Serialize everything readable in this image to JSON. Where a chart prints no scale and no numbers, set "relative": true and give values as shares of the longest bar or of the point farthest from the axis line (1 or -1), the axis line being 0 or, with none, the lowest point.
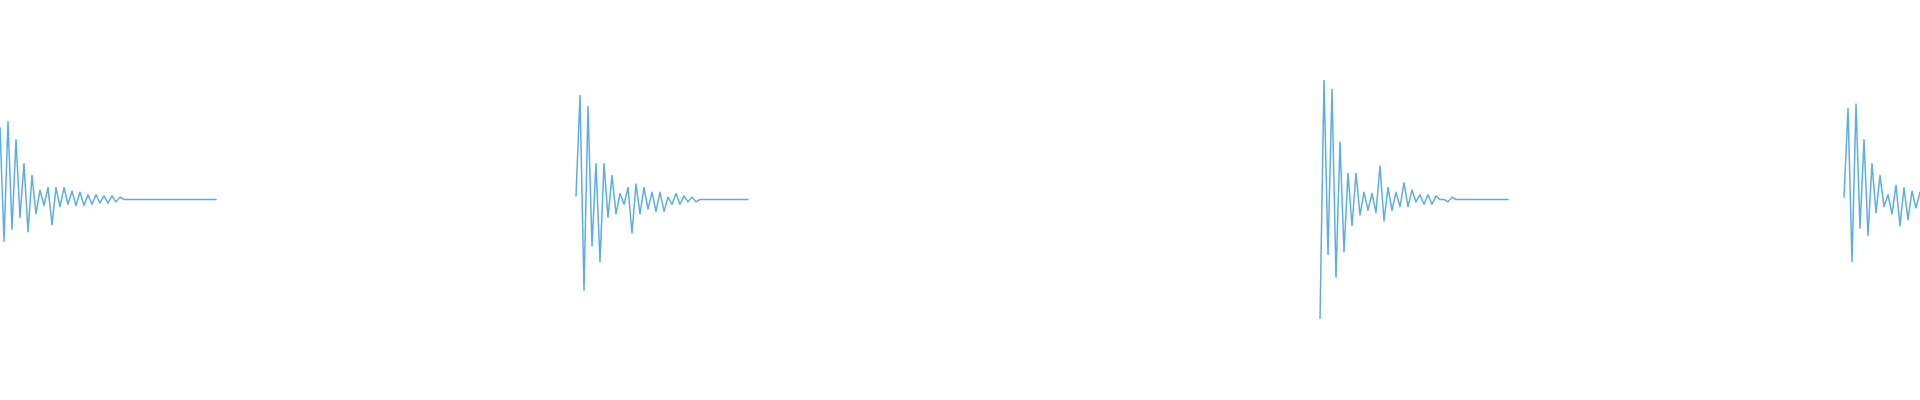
{
  "chart_data": {
    "type": "line",
    "relative": true,
    "categories": [
      null,
      null,
      null,
      null,
      null,
      null,
      null,
      null,
      null,
      null,
      null,
      null,
      null,
      null,
      null,
      null,
      null,
      null,
      null,
      null,
      null,
      null,
      null,
      null,
      null,
      null,
      null,
      null,
      null,
      null,
      null,
      null,
      null,
      null,
      null,
      null,
      null,
      null,
      null,
      null,
      null,
      null,
      null,
      null,
      null,
      null,
      null,
      null,
      null,
      null,
      null,
      null,
      null,
      null,
      null,
      null,
      null,
      null,
      null,
      null,
      null,
      null,
      null,
      null,
      null,
      null,
      null,
      null,
      null,
      null,
      null,
      null,
      null,
      null,
      null,
      null,
      null,
      null,
      null,
      null,
      null,
      null,
      null,
      null,
      null,
      null,
      null,
      null,
      null,
      null,
      null,
      null,
      null,
      null,
      null,
      null,
      null,
      null,
      null,
      null,
      null,
      null,
      null,
      null,
      null,
      null,
      null,
      null,
      null,
      null,
      null,
      null,
      null,
      null,
      null,
      null,
      null,
      null,
      null,
      null,
      null,
      null,
      null,
      null,
      null,
      null,
      null,
      null,
      null,
      null,
      null,
      null,
      null,
      null,
      null,
      null,
      null,
      null,
      null,
      null,
      null,
      null,
      null,
      null,
      null,
      null,
      null,
      null,
      null,
      null,
      null,
      null,
      null,
      null,
      null,
      null,
      null,
      null,
      null,
      null,
      null,
      null,
      null,
      null,
      null,
      null,
      null,
      null,
      null,
      null,
      null,
      null,
      null,
      null,
      null,
      null,
      null,
      null,
      null,
      null,
      null,
      null,
      null,
      null,
      null,
      null,
      null,
      null,
      null,
      null,
      null,
      null,
      null,
      null,
      null,
      null,
      null,
      null,
      null,
      null,
      null,
      null,
      null,
      null,
      null,
      null,
      null,
      null,
      null,
      null,
      null,
      null,
      null,
      null,
      null,
      null,
      null,
      null,
      null,
      null,
      null,
      null,
      null,
      null,
      null,
      null,
      null,
      null,
      null,
      null,
      null,
      null,
      null,
      null,
      null,
      null,
      null,
      null,
      null,
      null,
      null,
      null,
      null,
      null,
      null,
      null,
      null,
      null,
      null,
      null,
      null,
      null,
      null,
      null,
      null,
      null,
      null,
      null,
      null,
      null,
      null,
      null,
      null,
      null,
      null,
      null,
      null,
      null,
      null,
      null,
      null,
      null,
      null,
      null,
      null,
      null,
      null,
      null,
      null,
      null,
      null,
      null,
      null,
      null,
      null,
      null,
      null,
      null,
      null,
      null,
      null,
      null,
      null,
      null,
      null,
      null,
      null,
      null,
      null,
      null,
      null,
      null,
      null,
      null,
      null,
      null,
      null,
      null,
      null,
      null,
      null,
      null,
      null,
      null,
      null,
      null,
      null,
      null,
      null,
      null,
      null,
      null,
      null,
      null,
      null,
      null,
      null,
      null,
      null,
      null,
      null,
      null,
      null,
      null,
      null,
      null,
      null,
      null,
      null,
      null,
      null,
      null,
      null,
      null,
      null,
      null,
      null,
      null,
      null,
      null,
      null,
      null,
      null,
      null,
      null,
      null,
      null,
      null,
      null,
      null,
      null,
      null,
      null,
      null,
      null,
      null,
      null,
      null,
      null,
      null,
      null,
      null,
      null,
      null,
      null,
      null,
      null,
      null,
      null,
      null,
      null,
      null,
      null,
      null,
      null,
      null,
      null,
      null,
      null,
      null,
      null,
      null,
      null,
      null,
      null,
      null,
      null,
      null,
      null,
      null,
      null,
      null,
      null,
      null,
      null,
      null,
      null,
      null,
      null,
      null,
      null,
      null,
      null,
      null,
      null,
      null,
      null,
      null,
      null,
      null,
      null,
      null,
      null,
      null,
      null,
      null,
      null,
      null,
      null,
      null,
      null,
      null,
      null,
      null,
      null,
      null,
      null,
      null,
      null,
      null,
      null,
      null,
      null,
      null,
      null,
      null,
      null,
      null,
      null,
      null,
      null,
      null,
      null,
      null,
      null,
      null,
      null,
      null,
      null,
      null,
      null,
      null,
      null,
      null,
      null,
      null,
      null,
      null,
      null,
      null,
      null,
      null,
      null,
      null,
      null,
      null,
      null,
      null,
      null,
      null,
      null
    ],
    "series": [
      {
        "color": "#5dade2",
        "values": [
          0.8,
          0.325,
          0.825,
          0.375,
          0.75,
          0.425,
          0.65,
          0.365,
          0.6,
          0.44,
          0.54,
          0.475,
          0.55,
          0.395,
          0.55,
          0.47,
          0.55,
          0.48,
          0.535,
          0.475,
          0.53,
          0.475,
          0.52,
          0.48,
          0.52,
          0.485,
          0.515,
          0.485,
          0.515,
          0.49,
          0.51,
          0.5,
          0.5,
          0.5,
          0.5,
          0.5,
          0.5,
          0.5,
          0.5,
          0.5,
          0.5,
          0.5,
          0.5,
          0.5,
          0.5,
          0.5,
          0.5,
          0.5,
          0.5,
          0.5,
          0.5,
          0.5,
          0.5,
          0.5,
          0.5,
          null,
          null,
          null,
          null,
          null,
          null,
          null,
          null,
          null,
          null,
          null,
          null,
          null,
          null,
          null,
          null,
          null,
          null,
          null,
          null,
          null,
          null,
          null,
          null,
          null,
          null,
          null,
          null,
          null,
          null,
          null,
          null,
          null,
          null,
          null,
          null,
          null,
          null,
          null,
          null,
          null,
          null,
          null,
          null,
          null,
          null,
          null,
          null,
          null,
          null,
          null,
          null,
          null,
          null,
          null,
          null,
          null,
          null,
          null,
          null,
          null,
          null,
          null,
          null,
          null,
          null,
          null,
          null,
          null,
          null,
          null,
          null,
          null,
          null,
          null,
          null,
          null,
          null,
          null,
          null,
          null,
          null,
          null,
          null,
          null,
          null,
          null,
          null,
          null,
          null,
          null,
          null,
          null,
          null,
          null,
          null,
          null,
          null,
          null,
          null,
          null,
          null,
          null,
          null,
          null,
          null,
          null,
          null,
          null,
          null,
          null,
          null,
          null,
          null,
          null,
          null,
          null,
          null,
          null,
          null,
          null,
          null,
          null,
          null,
          null,
          null,
          null,
          null,
          null,
          null,
          null,
          null,
          null,
          null,
          null,
          null,
          null,
          null,
          null,
          null,
          null,
          null,
          null,
          null,
          null,
          null,
          null,
          null,
          null,
          null,
          null,
          null,
          null,
          null,
          null,
          null,
          null,
          null,
          null,
          null,
          null,
          null,
          null,
          null,
          null,
          null,
          null,
          null,
          null,
          null,
          null,
          null,
          null,
          null,
          null,
          null,
          null,
          null,
          null,
          null,
          null,
          null,
          null,
          null,
          null,
          null,
          null,
          null,
          null,
          null,
          null,
          null,
          null,
          null,
          null,
          null,
          null,
          null,
          null,
          null,
          null,
          null,
          null,
          null,
          null,
          null,
          null,
          null,
          null,
          null,
          null,
          null,
          null,
          null,
          null,
          null,
          null,
          null,
          null,
          null,
          null,
          null,
          null,
          null,
          null,
          null,
          null,
          null,
          null,
          null,
          null,
          null,
          null,
          null,
          null,
          null,
          null,
          null,
          null,
          null,
          null,
          null,
          null,
          null,
          null,
          null,
          null,
          null,
          null,
          null,
          null,
          null,
          null,
          null,
          null,
          null,
          null,
          null,
          null,
          null,
          null,
          null,
          null,
          null,
          null,
          null,
          null,
          null,
          null,
          null,
          null,
          null,
          null,
          null,
          null,
          null,
          null,
          null,
          null,
          null,
          null,
          null,
          null,
          null,
          null,
          null,
          null,
          null,
          null,
          null,
          null,
          null,
          null,
          null,
          null,
          null,
          null,
          null,
          null,
          null,
          null,
          null,
          null,
          null,
          null,
          null,
          null,
          null,
          null,
          null,
          null,
          null,
          null,
          null,
          null,
          null,
          null,
          null,
          null,
          null,
          null,
          null,
          null,
          null,
          null,
          null,
          null,
          null,
          null,
          null,
          null,
          null,
          null,
          null,
          null,
          null,
          null,
          null,
          null,
          null,
          null,
          null,
          null,
          null,
          null,
          null,
          null,
          null,
          null,
          null,
          null,
          null,
          null,
          null,
          null,
          null,
          null,
          null,
          null,
          null,
          null,
          null,
          null,
          null,
          null,
          null,
          null,
          null,
          null,
          null,
          null,
          null,
          null,
          null,
          null,
          null,
          null,
          null,
          null,
          null,
          null,
          null,
          null,
          null,
          null,
          null,
          null,
          null,
          null,
          null,
          null,
          null,
          null,
          null,
          null,
          null,
          null,
          null,
          null,
          null,
          null,
          null,
          null,
          null,
          null,
          null,
          null,
          null,
          null,
          null,
          null,
          null,
          null,
          null,
          null,
          null,
          null,
          null,
          null,
          null,
          null,
          null,
          null,
          null,
          null,
          null
        ]
      },
      {
        "color": "#5dade2",
        "values": [
          null,
          null,
          null,
          null,
          null,
          null,
          null,
          null,
          null,
          null,
          null,
          null,
          null,
          null,
          null,
          null,
          null,
          null,
          null,
          null,
          null,
          null,
          null,
          null,
          null,
          null,
          null,
          null,
          null,
          null,
          null,
          null,
          null,
          null,
          null,
          null,
          null,
          null,
          null,
          null,
          null,
          null,
          null,
          null,
          null,
          null,
          null,
          null,
          null,
          null,
          null,
          null,
          null,
          null,
          null,
          null,
          null,
          null,
          null,
          null,
          null,
          null,
          null,
          null,
          null,
          null,
          null,
          null,
          null,
          null,
          null,
          null,
          null,
          null,
          null,
          null,
          null,
          null,
          null,
          null,
          null,
          null,
          null,
          null,
          null,
          null,
          null,
          null,
          null,
          null,
          null,
          null,
          null,
          null,
          null,
          null,
          null,
          null,
          null,
          null,
          null,
          null,
          null,
          null,
          null,
          null,
          null,
          null,
          null,
          null,
          null,
          null,
          null,
          null,
          null,
          null,
          null,
          null,
          null,
          null,
          null,
          null,
          null,
          null,
          null,
          null,
          null,
          null,
          null,
          null,
          null,
          null,
          null,
          null,
          null,
          null,
          null,
          null,
          null,
          null,
          null,
          null,
          null,
          null,
          0.515,
          0.935,
          0.12,
          0.89,
          0.305,
          0.65,
          0.24,
          0.65,
          0.425,
          0.6,
          0.44,
          0.525,
          0.48,
          0.55,
          0.36,
          0.565,
          0.44,
          0.55,
          0.46,
          0.53,
          0.45,
          0.53,
          0.45,
          0.51,
          0.48,
          0.525,
          0.48,
          0.515,
          0.49,
          0.51,
          0.49,
          0.5,
          0.5,
          0.5,
          0.5,
          0.5,
          0.5,
          0.5,
          0.5,
          0.5,
          0.5,
          0.5,
          0.5,
          0.5,
          null,
          null,
          null,
          null,
          null,
          null,
          null,
          null,
          null,
          null,
          null,
          null,
          null,
          null,
          null,
          null,
          null,
          null,
          null,
          null,
          null,
          null,
          null,
          null,
          null,
          null,
          null,
          null,
          null,
          null,
          null,
          null,
          null,
          null,
          null,
          null,
          null,
          null,
          null,
          null,
          null,
          null,
          null,
          null,
          null,
          null,
          null,
          null,
          null,
          null,
          null,
          null,
          null,
          null,
          null,
          null,
          null,
          null,
          null,
          null,
          null,
          null,
          null,
          null,
          null,
          null,
          null,
          null,
          null,
          null,
          null,
          null,
          null,
          null,
          null,
          null,
          null,
          null,
          null,
          null,
          null,
          null,
          null,
          null,
          null,
          null,
          null,
          null,
          null,
          null,
          null,
          null,
          null,
          null,
          null,
          null,
          null,
          null,
          null,
          null,
          null,
          null,
          null,
          null,
          null,
          null,
          null,
          null,
          null,
          null,
          null,
          null,
          null,
          null,
          null,
          null,
          null,
          null,
          null,
          null,
          null,
          null,
          null,
          null,
          null,
          null,
          null,
          null,
          null,
          null,
          null,
          null,
          null,
          null,
          null,
          null,
          null,
          null,
          null,
          null,
          null,
          null,
          null,
          null,
          null,
          null,
          null,
          null,
          null,
          null,
          null,
          null,
          null,
          null,
          null,
          null,
          null,
          null,
          null,
          null,
          null,
          null,
          null,
          null,
          null,
          null,
          null,
          null,
          null,
          null,
          null,
          null,
          null,
          null,
          null,
          null,
          null,
          null,
          null,
          null,
          null,
          null,
          null,
          null,
          null,
          null,
          null,
          null,
          null,
          null,
          null,
          null,
          null,
          null,
          null,
          null,
          null,
          null,
          null,
          null,
          null,
          null,
          null,
          null,
          null,
          null,
          null,
          null,
          null,
          null,
          null,
          null,
          null,
          null,
          null,
          null,
          null,
          null,
          null,
          null,
          null,
          null,
          null,
          null,
          null,
          null,
          null,
          null,
          null,
          null,
          null,
          null,
          null,
          null,
          null,
          null,
          null,
          null,
          null,
          null,
          null,
          null,
          null,
          null,
          null,
          null,
          null,
          null,
          null,
          null,
          null,
          null,
          null,
          null,
          null,
          null,
          null,
          null,
          null,
          null,
          null,
          null,
          null,
          null,
          null,
          null,
          null,
          null,
          null,
          null,
          null,
          null,
          null,
          null,
          null,
          null,
          null,
          null,
          null,
          null,
          null,
          null,
          null,
          null,
          null,
          null,
          null,
          null,
          null,
          null,
          null,
          null,
          null
        ]
      },
      {
        "color": "#5dade2",
        "values": [
          null,
          null,
          null,
          null,
          null,
          null,
          null,
          null,
          null,
          null,
          null,
          null,
          null,
          null,
          null,
          null,
          null,
          null,
          null,
          null,
          null,
          null,
          null,
          null,
          null,
          null,
          null,
          null,
          null,
          null,
          null,
          null,
          null,
          null,
          null,
          null,
          null,
          null,
          null,
          null,
          null,
          null,
          null,
          null,
          null,
          null,
          null,
          null,
          null,
          null,
          null,
          null,
          null,
          null,
          null,
          null,
          null,
          null,
          null,
          null,
          null,
          null,
          null,
          null,
          null,
          null,
          null,
          null,
          null,
          null,
          null,
          null,
          null,
          null,
          null,
          null,
          null,
          null,
          null,
          null,
          null,
          null,
          null,
          null,
          null,
          null,
          null,
          null,
          null,
          null,
          null,
          null,
          null,
          null,
          null,
          null,
          null,
          null,
          null,
          null,
          null,
          null,
          null,
          null,
          null,
          null,
          null,
          null,
          null,
          null,
          null,
          null,
          null,
          null,
          null,
          null,
          null,
          null,
          null,
          null,
          null,
          null,
          null,
          null,
          null,
          null,
          null,
          null,
          null,
          null,
          null,
          null,
          null,
          null,
          null,
          null,
          null,
          null,
          null,
          null,
          null,
          null,
          null,
          null,
          null,
          null,
          null,
          null,
          null,
          null,
          null,
          null,
          null,
          null,
          null,
          null,
          null,
          null,
          null,
          null,
          null,
          null,
          null,
          null,
          null,
          null,
          null,
          null,
          null,
          null,
          null,
          null,
          null,
          null,
          null,
          null,
          null,
          null,
          null,
          null,
          null,
          null,
          null,
          null,
          null,
          null,
          null,
          null,
          null,
          null,
          null,
          null,
          null,
          null,
          null,
          null,
          null,
          null,
          null,
          null,
          null,
          null,
          null,
          null,
          null,
          null,
          null,
          null,
          null,
          null,
          null,
          null,
          null,
          null,
          null,
          null,
          null,
          null,
          null,
          null,
          null,
          null,
          null,
          null,
          null,
          null,
          null,
          null,
          null,
          null,
          null,
          null,
          null,
          null,
          null,
          null,
          null,
          null,
          null,
          null,
          null,
          null,
          null,
          null,
          null,
          null,
          null,
          null,
          null,
          null,
          null,
          null,
          null,
          null,
          null,
          null,
          null,
          null,
          null,
          null,
          null,
          null,
          null,
          null,
          null,
          null,
          null,
          null,
          null,
          null,
          null,
          null,
          null,
          null,
          null,
          null,
          null,
          null,
          null,
          null,
          null,
          null,
          null,
          null,
          null,
          null,
          null,
          null,
          null,
          null,
          null,
          null,
          null,
          null,
          null,
          null,
          null,
          null,
          null,
          null,
          null,
          null,
          null,
          null,
          null,
          null,
          null,
          null,
          null,
          null,
          null,
          null,
          null,
          null,
          null,
          null,
          null,
          null,
          null,
          null,
          null,
          null,
          null,
          null,
          null,
          null,
          null,
          null,
          null,
          null,
          0,
          1,
          0.27,
          0.96,
          0.175,
          0.74,
          0.28,
          0.61,
          0.39,
          0.61,
          0.435,
          0.53,
          0.455,
          0.525,
          0.445,
          0.64,
          0.41,
          0.55,
          0.455,
          0.53,
          0.47,
          0.57,
          0.47,
          0.54,
          0.49,
          0.52,
          0.48,
          0.52,
          0.48,
          0.515,
          0.5,
          0.5,
          0.49,
          0.51,
          0.5,
          0.5,
          0.5,
          0.5,
          0.5,
          0.5,
          0.5,
          0.5,
          0.5,
          0.5,
          0.5,
          0.5,
          0.5,
          0.5,
          null,
          null,
          null,
          null,
          null,
          null,
          null,
          null,
          null,
          null,
          null,
          null,
          null,
          null,
          null,
          null,
          null,
          null,
          null,
          null,
          null,
          null,
          null,
          null,
          null,
          null,
          null,
          null,
          null,
          null,
          null,
          null,
          null,
          null,
          null,
          null,
          null,
          null,
          null,
          null,
          null,
          null,
          null,
          null,
          null,
          null,
          null,
          null,
          null,
          null,
          null,
          null,
          null,
          null,
          null,
          null,
          null,
          null,
          null,
          null,
          null,
          null,
          null,
          null,
          null,
          null,
          null,
          null,
          null,
          null,
          null,
          null,
          null,
          null,
          null,
          null,
          null,
          null,
          null,
          null,
          null,
          null,
          null,
          null,
          null,
          null,
          null,
          null,
          null,
          null,
          null,
          null,
          null,
          null,
          null,
          null,
          null,
          null,
          null,
          null,
          null,
          null,
          null
        ]
      },
      {
        "color": "#5dade2",
        "values": [
          null,
          null,
          null,
          null,
          null,
          null,
          null,
          null,
          null,
          null,
          null,
          null,
          null,
          null,
          null,
          null,
          null,
          null,
          null,
          null,
          null,
          null,
          null,
          null,
          null,
          null,
          null,
          null,
          null,
          null,
          null,
          null,
          null,
          null,
          null,
          null,
          null,
          null,
          null,
          null,
          null,
          null,
          null,
          null,
          null,
          null,
          null,
          null,
          null,
          null,
          null,
          null,
          null,
          null,
          null,
          null,
          null,
          null,
          null,
          null,
          null,
          null,
          null,
          null,
          null,
          null,
          null,
          null,
          null,
          null,
          null,
          null,
          null,
          null,
          null,
          null,
          null,
          null,
          null,
          null,
          null,
          null,
          null,
          null,
          null,
          null,
          null,
          null,
          null,
          null,
          null,
          null,
          null,
          null,
          null,
          null,
          null,
          null,
          null,
          null,
          null,
          null,
          null,
          null,
          null,
          null,
          null,
          null,
          null,
          null,
          null,
          null,
          null,
          null,
          null,
          null,
          null,
          null,
          null,
          null,
          null,
          null,
          null,
          null,
          null,
          null,
          null,
          null,
          null,
          null,
          null,
          null,
          null,
          null,
          null,
          null,
          null,
          null,
          null,
          null,
          null,
          null,
          null,
          null,
          null,
          null,
          null,
          null,
          null,
          null,
          null,
          null,
          null,
          null,
          null,
          null,
          null,
          null,
          null,
          null,
          null,
          null,
          null,
          null,
          null,
          null,
          null,
          null,
          null,
          null,
          null,
          null,
          null,
          null,
          null,
          null,
          null,
          null,
          null,
          null,
          null,
          null,
          null,
          null,
          null,
          null,
          null,
          null,
          null,
          null,
          null,
          null,
          null,
          null,
          null,
          null,
          null,
          null,
          null,
          null,
          null,
          null,
          null,
          null,
          null,
          null,
          null,
          null,
          null,
          null,
          null,
          null,
          null,
          null,
          null,
          null,
          null,
          null,
          null,
          null,
          null,
          null,
          null,
          null,
          null,
          null,
          null,
          null,
          null,
          null,
          null,
          null,
          null,
          null,
          null,
          null,
          null,
          null,
          null,
          null,
          null,
          null,
          null,
          null,
          null,
          null,
          null,
          null,
          null,
          null,
          null,
          null,
          null,
          null,
          null,
          null,
          null,
          null,
          null,
          null,
          null,
          null,
          null,
          null,
          null,
          null,
          null,
          null,
          null,
          null,
          null,
          null,
          null,
          null,
          null,
          null,
          null,
          null,
          null,
          null,
          null,
          null,
          null,
          null,
          null,
          null,
          null,
          null,
          null,
          null,
          null,
          null,
          null,
          null,
          null,
          null,
          null,
          null,
          null,
          null,
          null,
          null,
          null,
          null,
          null,
          null,
          null,
          null,
          null,
          null,
          null,
          null,
          null,
          null,
          null,
          null,
          null,
          null,
          null,
          null,
          null,
          null,
          null,
          null,
          null,
          null,
          null,
          null,
          null,
          null,
          null,
          null,
          null,
          null,
          null,
          null,
          null,
          null,
          null,
          null,
          null,
          null,
          null,
          null,
          null,
          null,
          null,
          null,
          null,
          null,
          null,
          null,
          null,
          null,
          null,
          null,
          null,
          null,
          null,
          null,
          null,
          null,
          null,
          null,
          null,
          null,
          null,
          null,
          null,
          null,
          null,
          null,
          null,
          null,
          null,
          null,
          null,
          null,
          null,
          null,
          null,
          null,
          null,
          null,
          null,
          null,
          null,
          null,
          null,
          null,
          null,
          null,
          null,
          null,
          null,
          null,
          null,
          null,
          null,
          null,
          null,
          null,
          null,
          null,
          null,
          null,
          null,
          null,
          null,
          null,
          null,
          null,
          null,
          null,
          null,
          null,
          null,
          null,
          null,
          null,
          null,
          null,
          null,
          null,
          null,
          null,
          null,
          null,
          null,
          null,
          null,
          null,
          null,
          null,
          null,
          null,
          null,
          null,
          null,
          null,
          null,
          null,
          null,
          null,
          null,
          null,
          null,
          null,
          null,
          null,
          null,
          null,
          null,
          null,
          null,
          null,
          null,
          null,
          null,
          null,
          null,
          0.51,
          0.88,
          0.24,
          0.9,
          0.38,
          0.75,
          0.35,
          0.65,
          0.445,
          0.6,
          0.47,
          0.52,
          0.44,
          0.56,
          0.39,
          0.55,
          0.415,
          0.535,
          0.465,
          0.53
        ]
      }
    ]
  }
}
